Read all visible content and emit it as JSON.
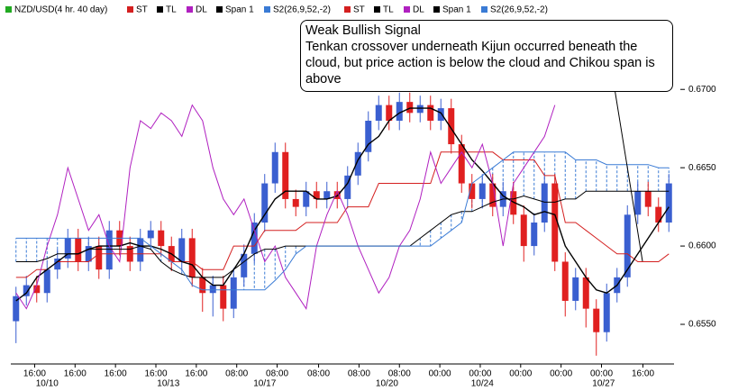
{
  "chart_data": {
    "type": "candlestick",
    "instrument": "NZD/USD(4 hr. 40 day)",
    "instrument_color": "#22aa22",
    "annotation": {
      "title": "Weak Bullish Signal",
      "text": "Tenkan crossover underneath Kijun occurred beneath the cloud, but price action is below the cloud and Chikou span is above"
    },
    "ylim": [
      0.6527,
      0.6745
    ],
    "yticks": [
      {
        "value": 0.655,
        "label": "0.6550"
      },
      {
        "value": 0.66,
        "label": "0.6600"
      },
      {
        "value": 0.665,
        "label": "0.6650"
      },
      {
        "value": 0.67,
        "label": "0.6700"
      }
    ],
    "xlim": [
      -0.5,
      63.5
    ],
    "xticks": [
      {
        "value": 1.8,
        "label": "16:00"
      },
      {
        "value": 5.7,
        "label": "16:00"
      },
      {
        "value": 9.6,
        "label": "16:00"
      },
      {
        "value": 13.5,
        "label": "16:00"
      },
      {
        "value": 17.4,
        "label": "16:00"
      },
      {
        "value": 21.3,
        "label": "08:00"
      },
      {
        "value": 25.2,
        "label": "08:00"
      },
      {
        "value": 29.2,
        "label": "08:00"
      },
      {
        "value": 33.1,
        "label": "08:00"
      },
      {
        "value": 37,
        "label": "08:00"
      },
      {
        "value": 40.9,
        "label": "00:00"
      },
      {
        "value": 44.8,
        "label": "00:00"
      },
      {
        "value": 48.7,
        "label": "00:00"
      },
      {
        "value": 52.6,
        "label": "00:00"
      },
      {
        "value": 56.5,
        "label": "00:00"
      },
      {
        "value": 60.5,
        "label": "16:00"
      }
    ],
    "date_labels": [
      {
        "value": 3,
        "label": "10/10"
      },
      {
        "value": 14.7,
        "label": "10/13"
      },
      {
        "value": 24,
        "label": "10/17"
      },
      {
        "value": 35.8,
        "label": "10/20"
      },
      {
        "value": 45,
        "label": "10/24"
      },
      {
        "value": 56.7,
        "label": "10/27"
      }
    ],
    "candles": {
      "up_color": "#3a5fd0",
      "down_color": "#e02020",
      "open": [
        0.6552,
        0.6568,
        0.6575,
        0.657,
        0.6585,
        0.6592,
        0.6605,
        0.659,
        0.66,
        0.6585,
        0.661,
        0.66,
        0.659,
        0.6605,
        0.661,
        0.66,
        0.659,
        0.6605,
        0.658,
        0.657,
        0.6575,
        0.656,
        0.658,
        0.6595,
        0.6615,
        0.664,
        0.666,
        0.663,
        0.6625,
        0.6635,
        0.663,
        0.6635,
        0.663,
        0.6645,
        0.666,
        0.668,
        0.669,
        0.668,
        0.6692,
        0.6685,
        0.669,
        0.668,
        0.6688,
        0.6665,
        0.664,
        0.663,
        0.664,
        0.6625,
        0.6635,
        0.662,
        0.66,
        0.6615,
        0.664,
        0.659,
        0.6565,
        0.658,
        0.656,
        0.6545,
        0.657,
        0.658,
        0.662,
        0.6635,
        0.6625,
        0.6615
      ],
      "high": [
        0.6574,
        0.6581,
        0.6581,
        0.6591,
        0.6598,
        0.6611,
        0.6611,
        0.6606,
        0.6606,
        0.6616,
        0.6616,
        0.6606,
        0.6611,
        0.6616,
        0.6616,
        0.6606,
        0.6611,
        0.6611,
        0.6586,
        0.6581,
        0.6581,
        0.6586,
        0.6601,
        0.6621,
        0.6646,
        0.6666,
        0.6666,
        0.6636,
        0.6641,
        0.6641,
        0.6641,
        0.6641,
        0.6651,
        0.6666,
        0.6686,
        0.6696,
        0.6696,
        0.6698,
        0.6698,
        0.6696,
        0.6696,
        0.6694,
        0.6694,
        0.6671,
        0.6646,
        0.6646,
        0.6646,
        0.6641,
        0.6641,
        0.6626,
        0.6621,
        0.6646,
        0.6646,
        0.6596,
        0.6586,
        0.6586,
        0.6566,
        0.6576,
        0.6586,
        0.6626,
        0.6641,
        0.6641,
        0.6631,
        0.6646
      ],
      "low": [
        0.6538,
        0.6562,
        0.6564,
        0.6564,
        0.6579,
        0.6586,
        0.6584,
        0.6584,
        0.6579,
        0.6579,
        0.6594,
        0.6584,
        0.6584,
        0.6599,
        0.6594,
        0.6584,
        0.6584,
        0.6574,
        0.6558,
        0.6555,
        0.6552,
        0.6554,
        0.6574,
        0.6589,
        0.6609,
        0.6634,
        0.6624,
        0.6619,
        0.6619,
        0.6624,
        0.6624,
        0.6624,
        0.6624,
        0.6639,
        0.6654,
        0.6674,
        0.6674,
        0.6674,
        0.6679,
        0.6679,
        0.6674,
        0.6674,
        0.6659,
        0.6634,
        0.6624,
        0.6624,
        0.6619,
        0.6619,
        0.6614,
        0.659,
        0.6594,
        0.6609,
        0.6584,
        0.6555,
        0.6559,
        0.6548,
        0.653,
        0.6539,
        0.6564,
        0.6574,
        0.6614,
        0.6619,
        0.6609,
        0.6609
      ],
      "close": [
        0.6568,
        0.6575,
        0.657,
        0.6585,
        0.6592,
        0.6605,
        0.659,
        0.66,
        0.6585,
        0.661,
        0.66,
        0.659,
        0.6605,
        0.661,
        0.66,
        0.659,
        0.6605,
        0.658,
        0.657,
        0.6575,
        0.656,
        0.658,
        0.6595,
        0.6615,
        0.664,
        0.666,
        0.663,
        0.6625,
        0.6635,
        0.663,
        0.6635,
        0.663,
        0.6645,
        0.666,
        0.668,
        0.669,
        0.668,
        0.6692,
        0.6685,
        0.669,
        0.668,
        0.6688,
        0.6665,
        0.664,
        0.663,
        0.664,
        0.6625,
        0.6635,
        0.662,
        0.66,
        0.6615,
        0.664,
        0.659,
        0.6565,
        0.658,
        0.656,
        0.6545,
        0.657,
        0.658,
        0.662,
        0.6635,
        0.6625,
        0.6615,
        0.664
      ]
    },
    "series": [
      {
        "name": "ST",
        "color": "#d42020",
        "values": [
          0.658,
          0.658,
          0.6585,
          0.6585,
          0.659,
          0.659,
          0.659,
          0.659,
          0.6595,
          0.6595,
          0.6595,
          0.6595,
          0.6595,
          0.6595,
          0.6595,
          0.659,
          0.659,
          0.659,
          0.6585,
          0.6585,
          0.6585,
          0.66,
          0.66,
          0.66,
          0.661,
          0.661,
          0.661,
          0.661,
          0.6615,
          0.6615,
          0.6615,
          0.6615,
          0.6625,
          0.6625,
          0.6625,
          0.664,
          0.664,
          0.664,
          0.664,
          0.664,
          0.664,
          0.666,
          0.666,
          0.666,
          0.666,
          0.666,
          0.666,
          0.6655,
          0.6655,
          0.6655,
          0.6655,
          0.6645,
          0.6645,
          0.6615,
          0.6615,
          0.661,
          0.6605,
          0.66,
          0.6595,
          0.6595,
          0.659,
          0.659,
          0.659,
          0.6595
        ]
      },
      {
        "name": "TL",
        "color": "#000000",
        "values": [
          0.6565,
          0.657,
          0.658,
          0.6585,
          0.659,
          0.6595,
          0.6595,
          0.6598,
          0.66,
          0.66,
          0.66,
          0.6602,
          0.66,
          0.66,
          0.6598,
          0.6595,
          0.659,
          0.6588,
          0.658,
          0.6575,
          0.6575,
          0.6585,
          0.6595,
          0.661,
          0.662,
          0.663,
          0.6635,
          0.6635,
          0.6635,
          0.663,
          0.663,
          0.6632,
          0.664,
          0.6655,
          0.6665,
          0.667,
          0.668,
          0.6685,
          0.6688,
          0.6688,
          0.6688,
          0.6685,
          0.6675,
          0.6665,
          0.6655,
          0.6648,
          0.664,
          0.6632,
          0.6628,
          0.6625,
          0.662,
          0.6622,
          0.662,
          0.66,
          0.659,
          0.658,
          0.6572,
          0.657,
          0.6575,
          0.6585,
          0.6595,
          0.6605,
          0.6615,
          0.6625
        ]
      },
      {
        "name": "DL",
        "color": "#b020c0",
        "values": [
          0.657,
          0.656,
          0.6575,
          0.66,
          0.662,
          0.665,
          0.663,
          0.661,
          0.662,
          0.66,
          0.659,
          0.665,
          0.668,
          0.6675,
          0.6685,
          0.668,
          0.667,
          0.669,
          0.668,
          0.665,
          0.663,
          0.662,
          0.663,
          0.661,
          0.659,
          0.66,
          0.658,
          0.657,
          0.656,
          0.66,
          0.662,
          0.6635,
          0.662,
          0.66,
          0.6585,
          0.657,
          0.658,
          0.66,
          0.661,
          0.663,
          0.666,
          0.664,
          0.665,
          0.666,
          0.665,
          0.6665,
          0.664,
          0.66,
          0.664,
          0.665,
          0.666,
          0.667,
          0.669,
          null,
          null,
          null,
          null,
          null,
          null,
          null,
          null,
          null,
          null,
          null
        ]
      },
      {
        "name": "Span 1",
        "color": "#000000",
        "values": [
          0.659,
          0.659,
          0.659,
          0.6592,
          0.6595,
          0.6595,
          0.6595,
          0.6598,
          0.6598,
          0.6598,
          0.6598,
          0.6598,
          0.66,
          0.6598,
          0.659,
          0.6585,
          0.6582,
          0.658,
          0.658,
          0.658,
          0.658,
          0.6585,
          0.659,
          0.6595,
          0.6598,
          0.6598,
          0.66,
          0.66,
          0.66,
          0.66,
          0.66,
          0.66,
          0.66,
          0.66,
          0.66,
          0.66,
          0.66,
          0.66,
          0.66,
          0.6605,
          0.661,
          0.6615,
          0.662,
          0.6622,
          0.6622,
          0.6625,
          0.6628,
          0.663,
          0.663,
          0.6632,
          0.663,
          0.6628,
          0.6628,
          0.663,
          0.663,
          0.6635,
          0.6635,
          0.6635,
          0.6635,
          0.6635,
          0.6635,
          0.6635,
          0.6635,
          0.6635
        ]
      },
      {
        "name": "S2(26,9,52,-2)",
        "color": "#3a7bd5",
        "values": [
          0.6605,
          0.6605,
          0.6605,
          0.6605,
          0.6605,
          0.6605,
          0.6605,
          0.6605,
          0.6605,
          0.6605,
          0.6605,
          0.6605,
          0.6605,
          0.66,
          0.6595,
          0.659,
          0.6585,
          0.6575,
          0.6572,
          0.6572,
          0.6572,
          0.6572,
          0.6572,
          0.6572,
          0.6572,
          0.6578,
          0.6585,
          0.6595,
          0.66,
          0.66,
          0.66,
          0.66,
          0.66,
          0.66,
          0.66,
          0.66,
          0.66,
          0.66,
          0.66,
          0.66,
          0.66,
          0.6605,
          0.661,
          0.6615,
          0.664,
          0.6645,
          0.665,
          0.6655,
          0.666,
          0.666,
          0.666,
          0.666,
          0.666,
          0.666,
          0.6655,
          0.6655,
          0.6655,
          0.6652,
          0.6652,
          0.6652,
          0.6652,
          0.6652,
          0.665,
          0.665
        ]
      }
    ]
  }
}
